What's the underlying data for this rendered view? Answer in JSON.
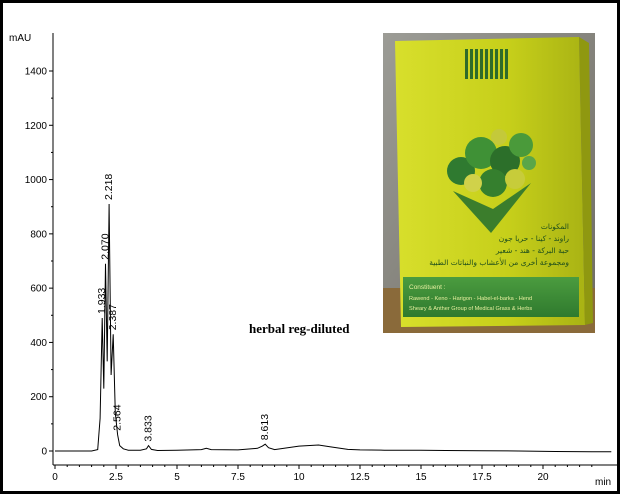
{
  "chart_data": {
    "type": "line",
    "ylabel": "mAU",
    "xlabel": "min",
    "xlim": [
      0,
      22.8
    ],
    "ylim": [
      -50,
      1500
    ],
    "x_ticks": [
      0,
      2.5,
      5,
      7.5,
      10,
      12.5,
      15,
      17.5,
      20
    ],
    "x_tick_labels": [
      "0",
      "2.5",
      "5",
      "7.5",
      "10",
      "12.5",
      "15",
      "17.5",
      "20"
    ],
    "y_ticks": [
      0,
      200,
      400,
      600,
      800,
      1000,
      1200,
      1400
    ],
    "y_tick_labels": [
      "0",
      "200",
      "400",
      "600",
      "800",
      "1000",
      "1200",
      "1400"
    ],
    "grid": false,
    "annotation": "herbal reg-diluted",
    "peaks": [
      {
        "rt": 1.933,
        "label": "1.933",
        "height": 490
      },
      {
        "rt": 2.07,
        "label": "2.070",
        "height": 690
      },
      {
        "rt": 2.218,
        "label": "2.218",
        "height": 910
      },
      {
        "rt": 2.387,
        "label": "2.387",
        "height": 430
      },
      {
        "rt": 2.564,
        "label": "2.564",
        "height": 60
      },
      {
        "rt": 3.833,
        "label": "3.833",
        "height": 20
      },
      {
        "rt": 8.613,
        "label": "8.613",
        "height": 25
      }
    ],
    "series": [
      {
        "x": [
          0,
          1.5,
          1.75,
          1.85,
          1.933,
          2.0,
          2.07,
          2.14,
          2.218,
          2.3,
          2.387,
          2.47,
          2.564,
          2.65,
          2.8,
          3.0,
          3.5,
          3.75,
          3.833,
          3.95,
          4.2,
          5.0,
          6.0,
          6.2,
          6.4,
          7.5,
          8.3,
          8.5,
          8.613,
          8.75,
          9.0,
          10.0,
          10.8,
          11.3,
          12.0,
          12.5,
          13.5,
          15.0,
          16.0,
          17.5,
          19.0,
          20.5,
          22.0,
          22.8
        ],
        "y": [
          0,
          0,
          5,
          120,
          490,
          230,
          690,
          330,
          910,
          280,
          430,
          140,
          60,
          20,
          8,
          3,
          3,
          8,
          20,
          6,
          2,
          3,
          5,
          10,
          5,
          4,
          10,
          18,
          25,
          12,
          5,
          18,
          22,
          15,
          6,
          4,
          3,
          3,
          2,
          1,
          0,
          -2,
          -3,
          -3
        ]
      }
    ]
  },
  "photo": {
    "box_color": "#c9d21a",
    "panel_color": "#3f8f3a",
    "arabic_line_1": "المكونات",
    "arabic_line_2": "راوند - كينا - حريا جون",
    "arabic_line_3": "حبة البركة - هند - شعير",
    "arabic_line_4": "ومجموعة أخرى من الأعشاب والنباتات الطبية",
    "constituent_heading": "Constituent :",
    "constituent_line_1": "Rawend - Keno - Harigon - Habel-el-barka - Hend",
    "constituent_line_2": "Sheary & Anther Group of Medical Grass & Herbs"
  }
}
